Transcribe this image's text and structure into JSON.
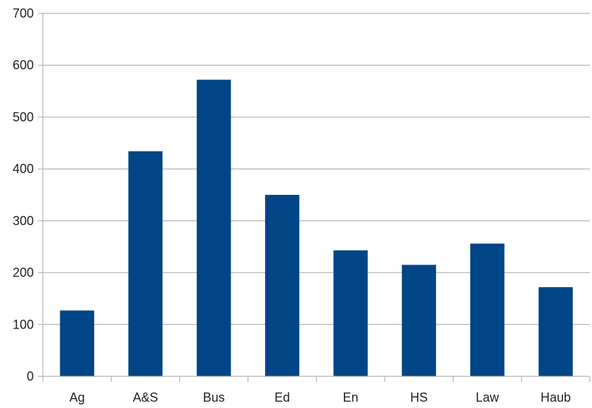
{
  "chart_data": {
    "type": "bar",
    "categories": [
      "Ag",
      "A&S",
      "Bus",
      "Ed",
      "En",
      "HS",
      "Law",
      "Haub"
    ],
    "values": [
      127,
      434,
      572,
      350,
      243,
      215,
      256,
      172
    ],
    "ylim": [
      0,
      700
    ],
    "yticks": [
      0,
      100,
      200,
      300,
      400,
      500,
      600,
      700
    ],
    "ytick_labels": [
      "0",
      "100",
      "200",
      "300",
      "400",
      "500",
      "600",
      "700"
    ],
    "grid": true,
    "legend": "none",
    "colors": {
      "bar": "#004586",
      "grid": "#b3b3b3",
      "axis": "#b3b3b3",
      "text": "#222222"
    }
  }
}
